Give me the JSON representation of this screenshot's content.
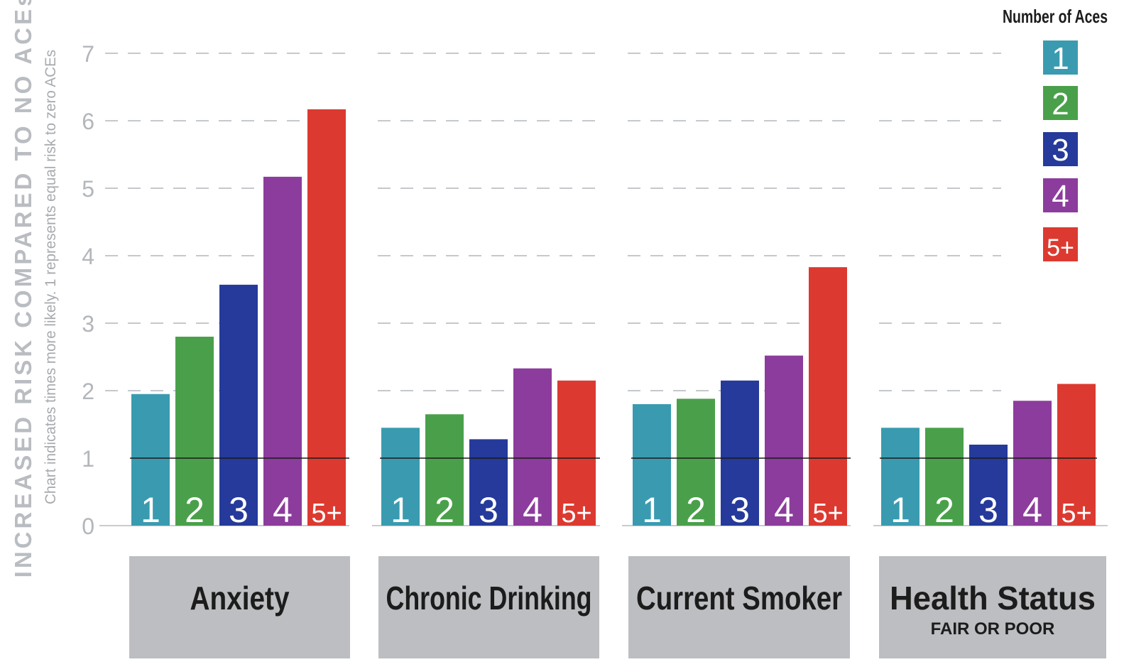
{
  "chart_data": {
    "type": "bar",
    "ylabel": "INCREASED RISK COMPARED TO NO ACEs",
    "ylabel_note": "Chart indicates times more likely. 1 represents equal risk to zero ACEs",
    "ylim": [
      0,
      7
    ],
    "yticks": [
      "0",
      "1",
      "2",
      "3",
      "4",
      "5",
      "6",
      "7"
    ],
    "grid": true,
    "legend_title": "Number of Aces",
    "legend_position": "top-right",
    "categories": [
      {
        "name": "Anxiety",
        "sub": ""
      },
      {
        "name": "Chronic Drinking",
        "sub": ""
      },
      {
        "name": "Current Smoker",
        "sub": ""
      },
      {
        "name": "Health Status",
        "sub": "FAIR OR POOR"
      }
    ],
    "series": [
      {
        "name": "1",
        "color": "#3a9bb0",
        "values": [
          1.95,
          1.45,
          1.8,
          1.45
        ]
      },
      {
        "name": "2",
        "color": "#4aa04a",
        "values": [
          2.8,
          1.65,
          1.88,
          1.45
        ]
      },
      {
        "name": "3",
        "color": "#253a9a",
        "values": [
          3.57,
          1.28,
          2.15,
          1.2
        ]
      },
      {
        "name": "4",
        "color": "#8c3c9c",
        "values": [
          5.17,
          2.33,
          2.52,
          1.85
        ]
      },
      {
        "name": "5+",
        "color": "#dc3a30",
        "values": [
          6.17,
          2.15,
          3.83,
          2.1
        ]
      }
    ]
  }
}
